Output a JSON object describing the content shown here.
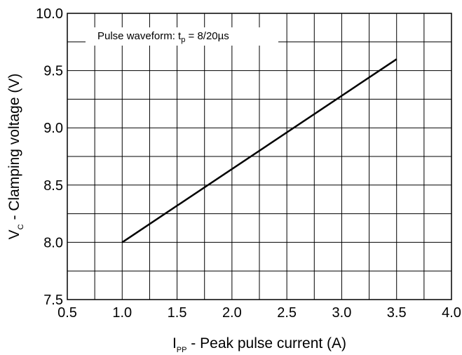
{
  "chart_data": {
    "type": "line",
    "title": "",
    "x_axis": {
      "label_main": "I",
      "label_sub": "PP",
      "label_rest": " - Peak pulse current (A)",
      "range": [
        0.5,
        4.0
      ],
      "ticks": [
        "0.5",
        "1.0",
        "1.5",
        "2.0",
        "2.5",
        "3.0",
        "3.5",
        "4.0"
      ],
      "tick_values": [
        0.5,
        1.0,
        1.5,
        2.0,
        2.5,
        3.0,
        3.5,
        4.0
      ]
    },
    "y_axis": {
      "label_main": "V",
      "label_sub": "C",
      "label_rest": " - Clamping voltage (V)",
      "range": [
        7.5,
        10.0
      ],
      "ticks": [
        "7.5",
        "8.0",
        "8.5",
        "9.0",
        "9.5",
        "10.0"
      ],
      "tick_values": [
        7.5,
        8.0,
        8.5,
        9.0,
        9.5,
        10.0
      ]
    },
    "grid": true,
    "series": [
      {
        "color": "#000000",
        "x": [
          1.0,
          3.5
        ],
        "y": [
          8.0,
          9.6
        ]
      }
    ],
    "annotation": {
      "prefix": "Pulse waveform: t",
      "sub": "p",
      "suffix": " = 8/20µs"
    }
  }
}
